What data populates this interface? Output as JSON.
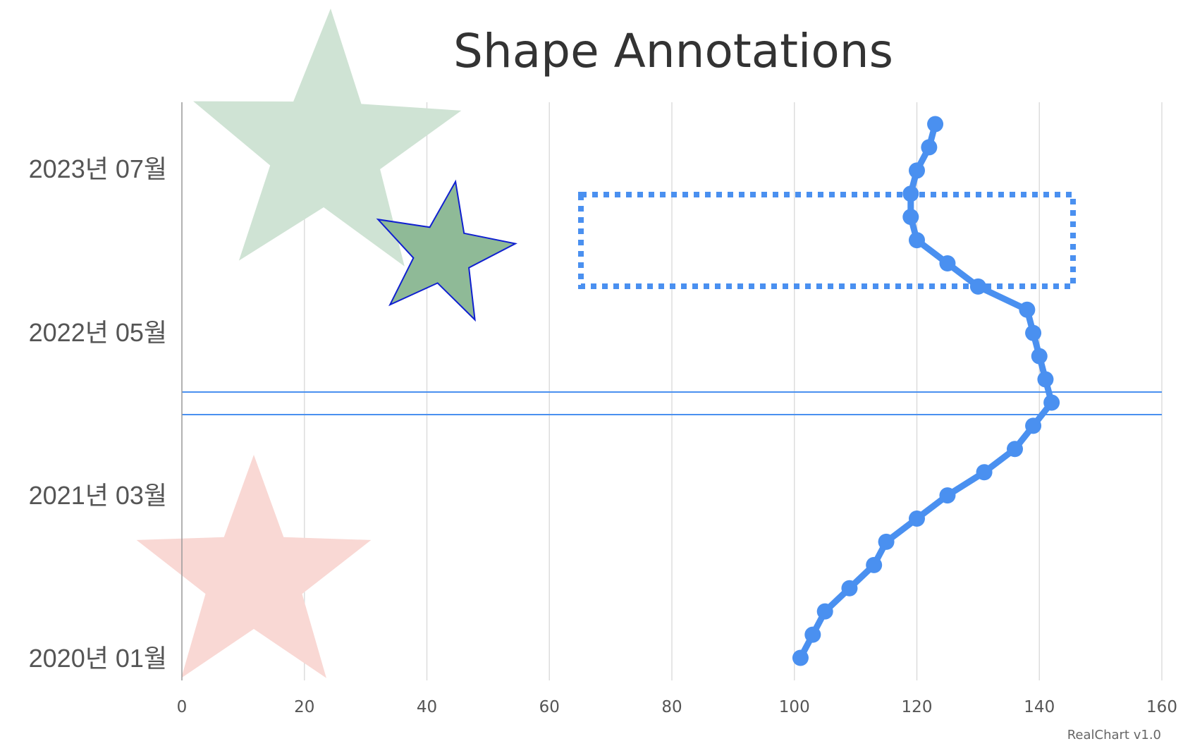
{
  "chart_data": {
    "type": "line",
    "orientation": "horizontal-values",
    "title": "Shape Annotations",
    "credit": "RealChart v1.0",
    "xlim": [
      0,
      160
    ],
    "x_ticks": [
      "0",
      "20",
      "40",
      "60",
      "80",
      "100",
      "120",
      "140",
      "160"
    ],
    "y_tick_labels": [
      "2023년 07월",
      "2022년 05월",
      "2021년 03월",
      "2020년 01월"
    ],
    "grid": true,
    "series": [
      {
        "color": "#4a90f0",
        "values": [
          101,
          103,
          105,
          109,
          113,
          115,
          120,
          125,
          131,
          136,
          139,
          142,
          141,
          140,
          139,
          138,
          130,
          125,
          120,
          119,
          119,
          120,
          122,
          123
        ]
      }
    ],
    "annotations": [
      {
        "shape": "star",
        "color": "#cfe3d4"
      },
      {
        "shape": "star",
        "color": "#8fba97",
        "border": "#1020d0"
      },
      {
        "shape": "star",
        "color": "#f9d8d4"
      },
      {
        "shape": "rectangle",
        "style": "dotted",
        "color": "#4a90f0"
      },
      {
        "shape": "band",
        "color": "#4a90f0"
      }
    ]
  }
}
